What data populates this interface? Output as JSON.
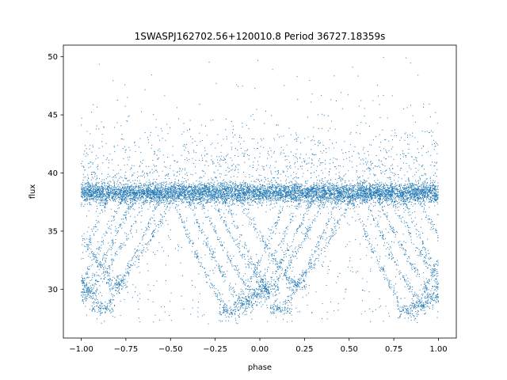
{
  "chart_data": {
    "type": "scatter",
    "title": "1SWASPJ162702.56+120010.8 Period 36727.18359s",
    "xlabel": "phase",
    "ylabel": "flux",
    "xlim": [
      -1.1,
      1.1
    ],
    "ylim": [
      25.8,
      51.0
    ],
    "x_ticks": [
      -1.0,
      -0.75,
      -0.5,
      -0.25,
      0.0,
      0.25,
      0.5,
      0.75,
      1.0
    ],
    "x_tick_labels": [
      "−1.00",
      "−0.75",
      "−0.50",
      "−0.25",
      "0.00",
      "0.25",
      "0.50",
      "0.75",
      "1.00"
    ],
    "y_ticks": [
      30,
      35,
      40,
      45,
      50
    ],
    "y_tick_labels": [
      "30",
      "35",
      "40",
      "45",
      "50"
    ],
    "grid": false,
    "point_color": "#1f77b4",
    "baseline_flux": 38.3,
    "baseline_scatter": 0.45,
    "eclipse_centers": [
      -1.0,
      0.0,
      1.0
    ],
    "eclipse_half_width": 0.33,
    "eclipse_depth_flux": [
      28.0,
      29.5
    ],
    "phase_range": [
      -1.0,
      1.0
    ]
  }
}
